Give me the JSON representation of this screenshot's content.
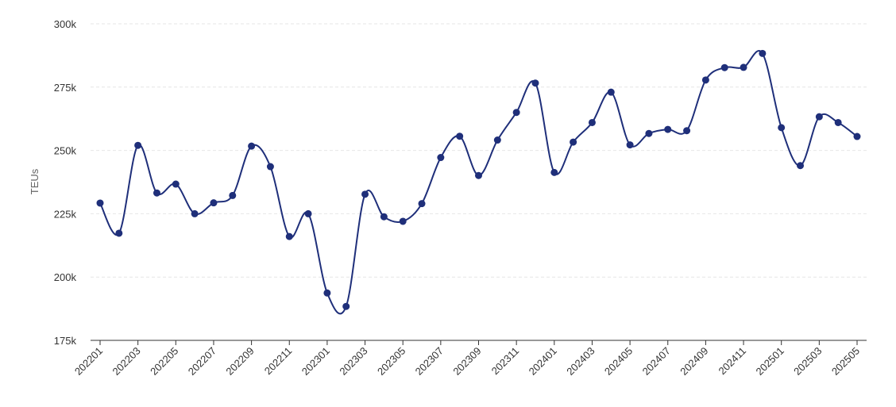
{
  "chart_data": {
    "type": "line",
    "title": "",
    "xlabel": "",
    "ylabel": "TEUs",
    "ylim": [
      175000,
      300000
    ],
    "yticks": [
      {
        "value": 175000,
        "label": "175k"
      },
      {
        "value": 200000,
        "label": "200k"
      },
      {
        "value": 225000,
        "label": "225k"
      },
      {
        "value": 250000,
        "label": "250k"
      },
      {
        "value": 275000,
        "label": "275k"
      },
      {
        "value": 300000,
        "label": "300k"
      }
    ],
    "grid": "horizontal dashed",
    "legend": "none",
    "series_color": "#1f2f7a",
    "x": [
      "202201",
      "202202",
      "202203",
      "202204",
      "202205",
      "202206",
      "202207",
      "202208",
      "202209",
      "202210",
      "202211",
      "202212",
      "202301",
      "202302",
      "202303",
      "202304",
      "202305",
      "202306",
      "202307",
      "202308",
      "202309",
      "202310",
      "202311",
      "202312",
      "202401",
      "202402",
      "202403",
      "202404",
      "202405",
      "202406",
      "202407",
      "202408",
      "202409",
      "202410",
      "202411",
      "202412",
      "202501",
      "202502",
      "202503",
      "202504",
      "202505"
    ],
    "xtick_labels": [
      "202201",
      "202203",
      "202205",
      "202207",
      "202209",
      "202211",
      "202301",
      "202303",
      "202305",
      "202307",
      "202309",
      "202311",
      "202401",
      "202403",
      "202405",
      "202407",
      "202409",
      "202411",
      "202501",
      "202503",
      "202505"
    ],
    "series": [
      {
        "values": [
          229200,
          217300,
          252000,
          233200,
          236700,
          225000,
          229300,
          232200,
          251700,
          243600,
          216000,
          225000,
          193700,
          188400,
          232700,
          223800,
          222000,
          229000,
          247200,
          255600,
          240100,
          254100,
          265000,
          276600,
          241300,
          253300,
          261000,
          273000,
          252200,
          256700,
          258300,
          257800,
          277800,
          282700,
          282800,
          288300,
          259000,
          244000,
          263300,
          261000,
          255500
        ]
      }
    ]
  }
}
